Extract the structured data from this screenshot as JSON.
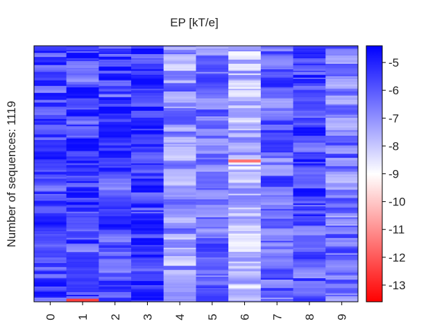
{
  "chart_data": {
    "type": "heatmap",
    "title": "EP [kT/e]",
    "ylabel": "Number of sequences: 1119",
    "xlabel": "",
    "x_categories": [
      "0",
      "1",
      "2",
      "3",
      "4",
      "5",
      "6",
      "7",
      "8",
      "9"
    ],
    "colorbar": {
      "ticks": [
        "-5",
        "-6",
        "-7",
        "-8",
        "-9",
        "-10",
        "-11",
        "-12",
        "-13"
      ],
      "range": [
        -13.6,
        -4.4
      ],
      "colormap": "bwr_reversed",
      "colors": {
        "low": "#ff0000",
        "mid": "#ffffff",
        "high": "#0000ff"
      }
    },
    "column_mean_values": [
      -5.6,
      -5.5,
      -5.7,
      -5.5,
      -7.0,
      -6.4,
      -7.8,
      -6.2,
      -5.7,
      -6.6
    ],
    "notable_cells": [
      {
        "column": "6",
        "row_fraction": 0.45,
        "value": -11.5
      },
      {
        "column": "1",
        "row_fraction": 0.995,
        "value": -12.5
      }
    ]
  }
}
